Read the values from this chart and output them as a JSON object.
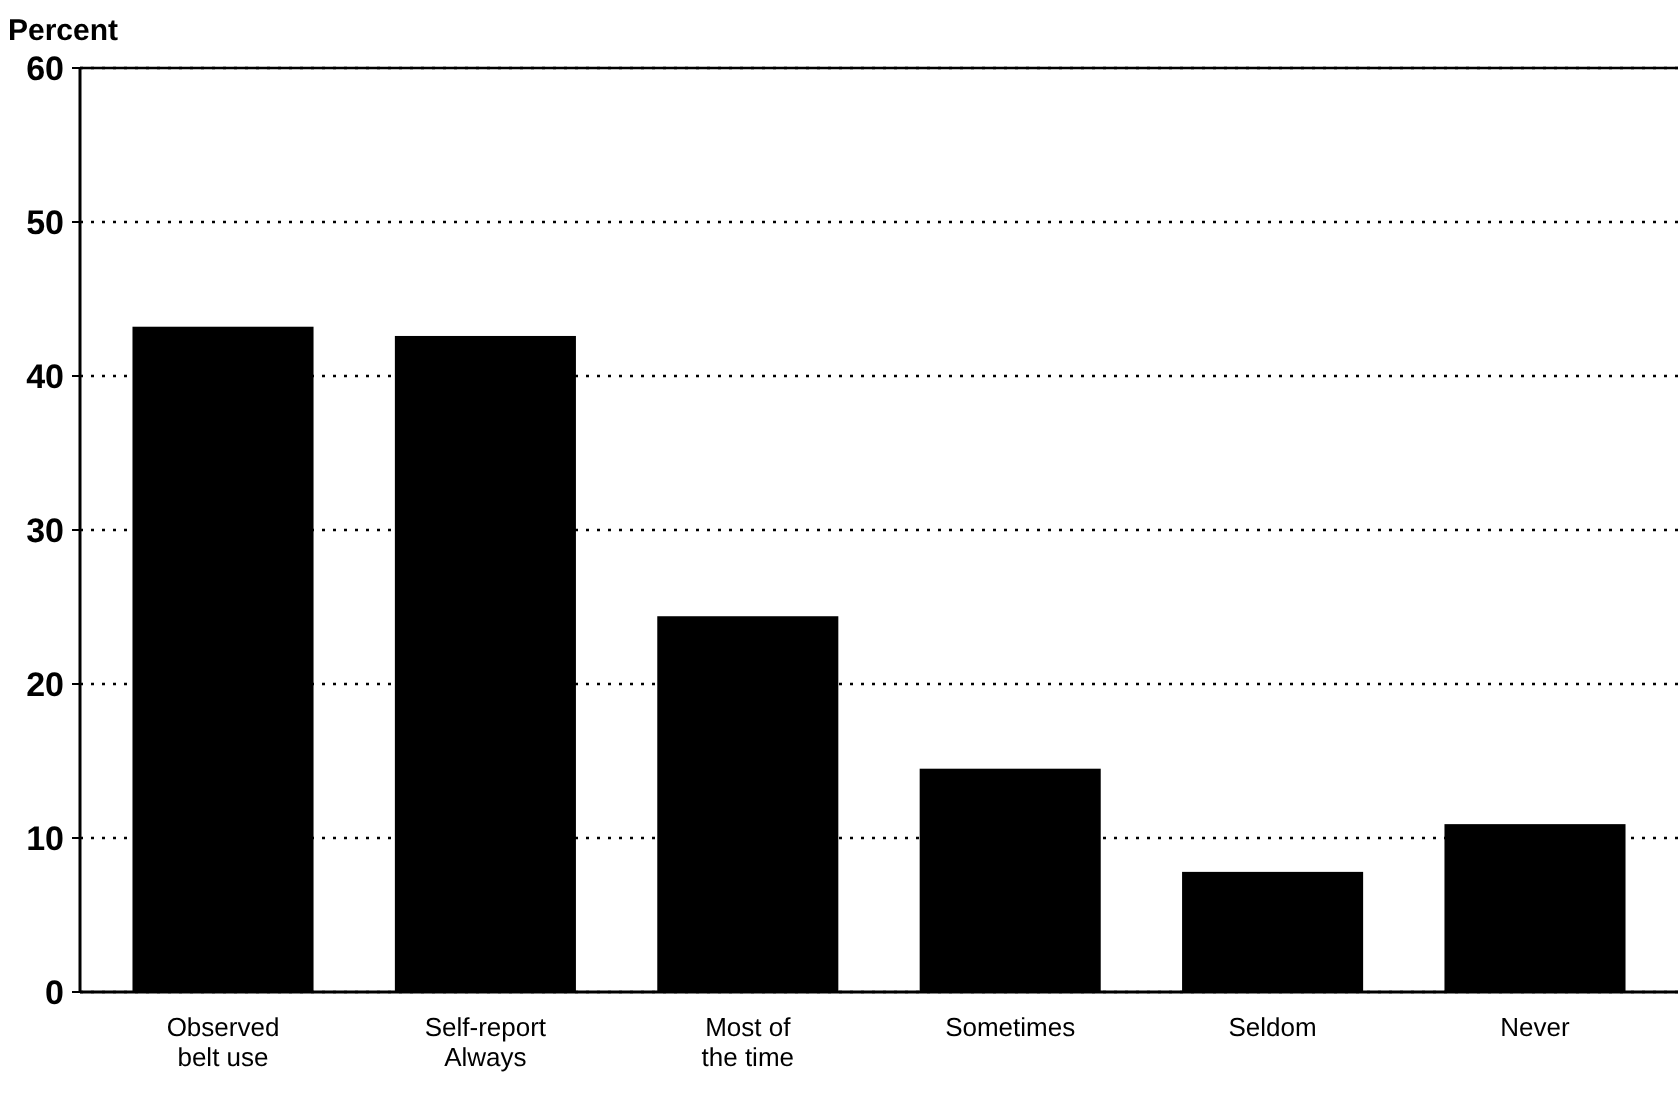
{
  "chart_data": {
    "type": "bar",
    "ylabel": "Percent",
    "categories": [
      "Observed belt use",
      "Self-report Always",
      "Most of the time",
      "Sometimes",
      "Seldom",
      "Never"
    ],
    "values": [
      43.2,
      42.6,
      24.4,
      14.5,
      7.8,
      10.9
    ],
    "color": "#000000",
    "ylim": [
      0,
      60
    ],
    "yticks": [
      0,
      10,
      20,
      30,
      40,
      50,
      60
    ],
    "grid": "y"
  }
}
